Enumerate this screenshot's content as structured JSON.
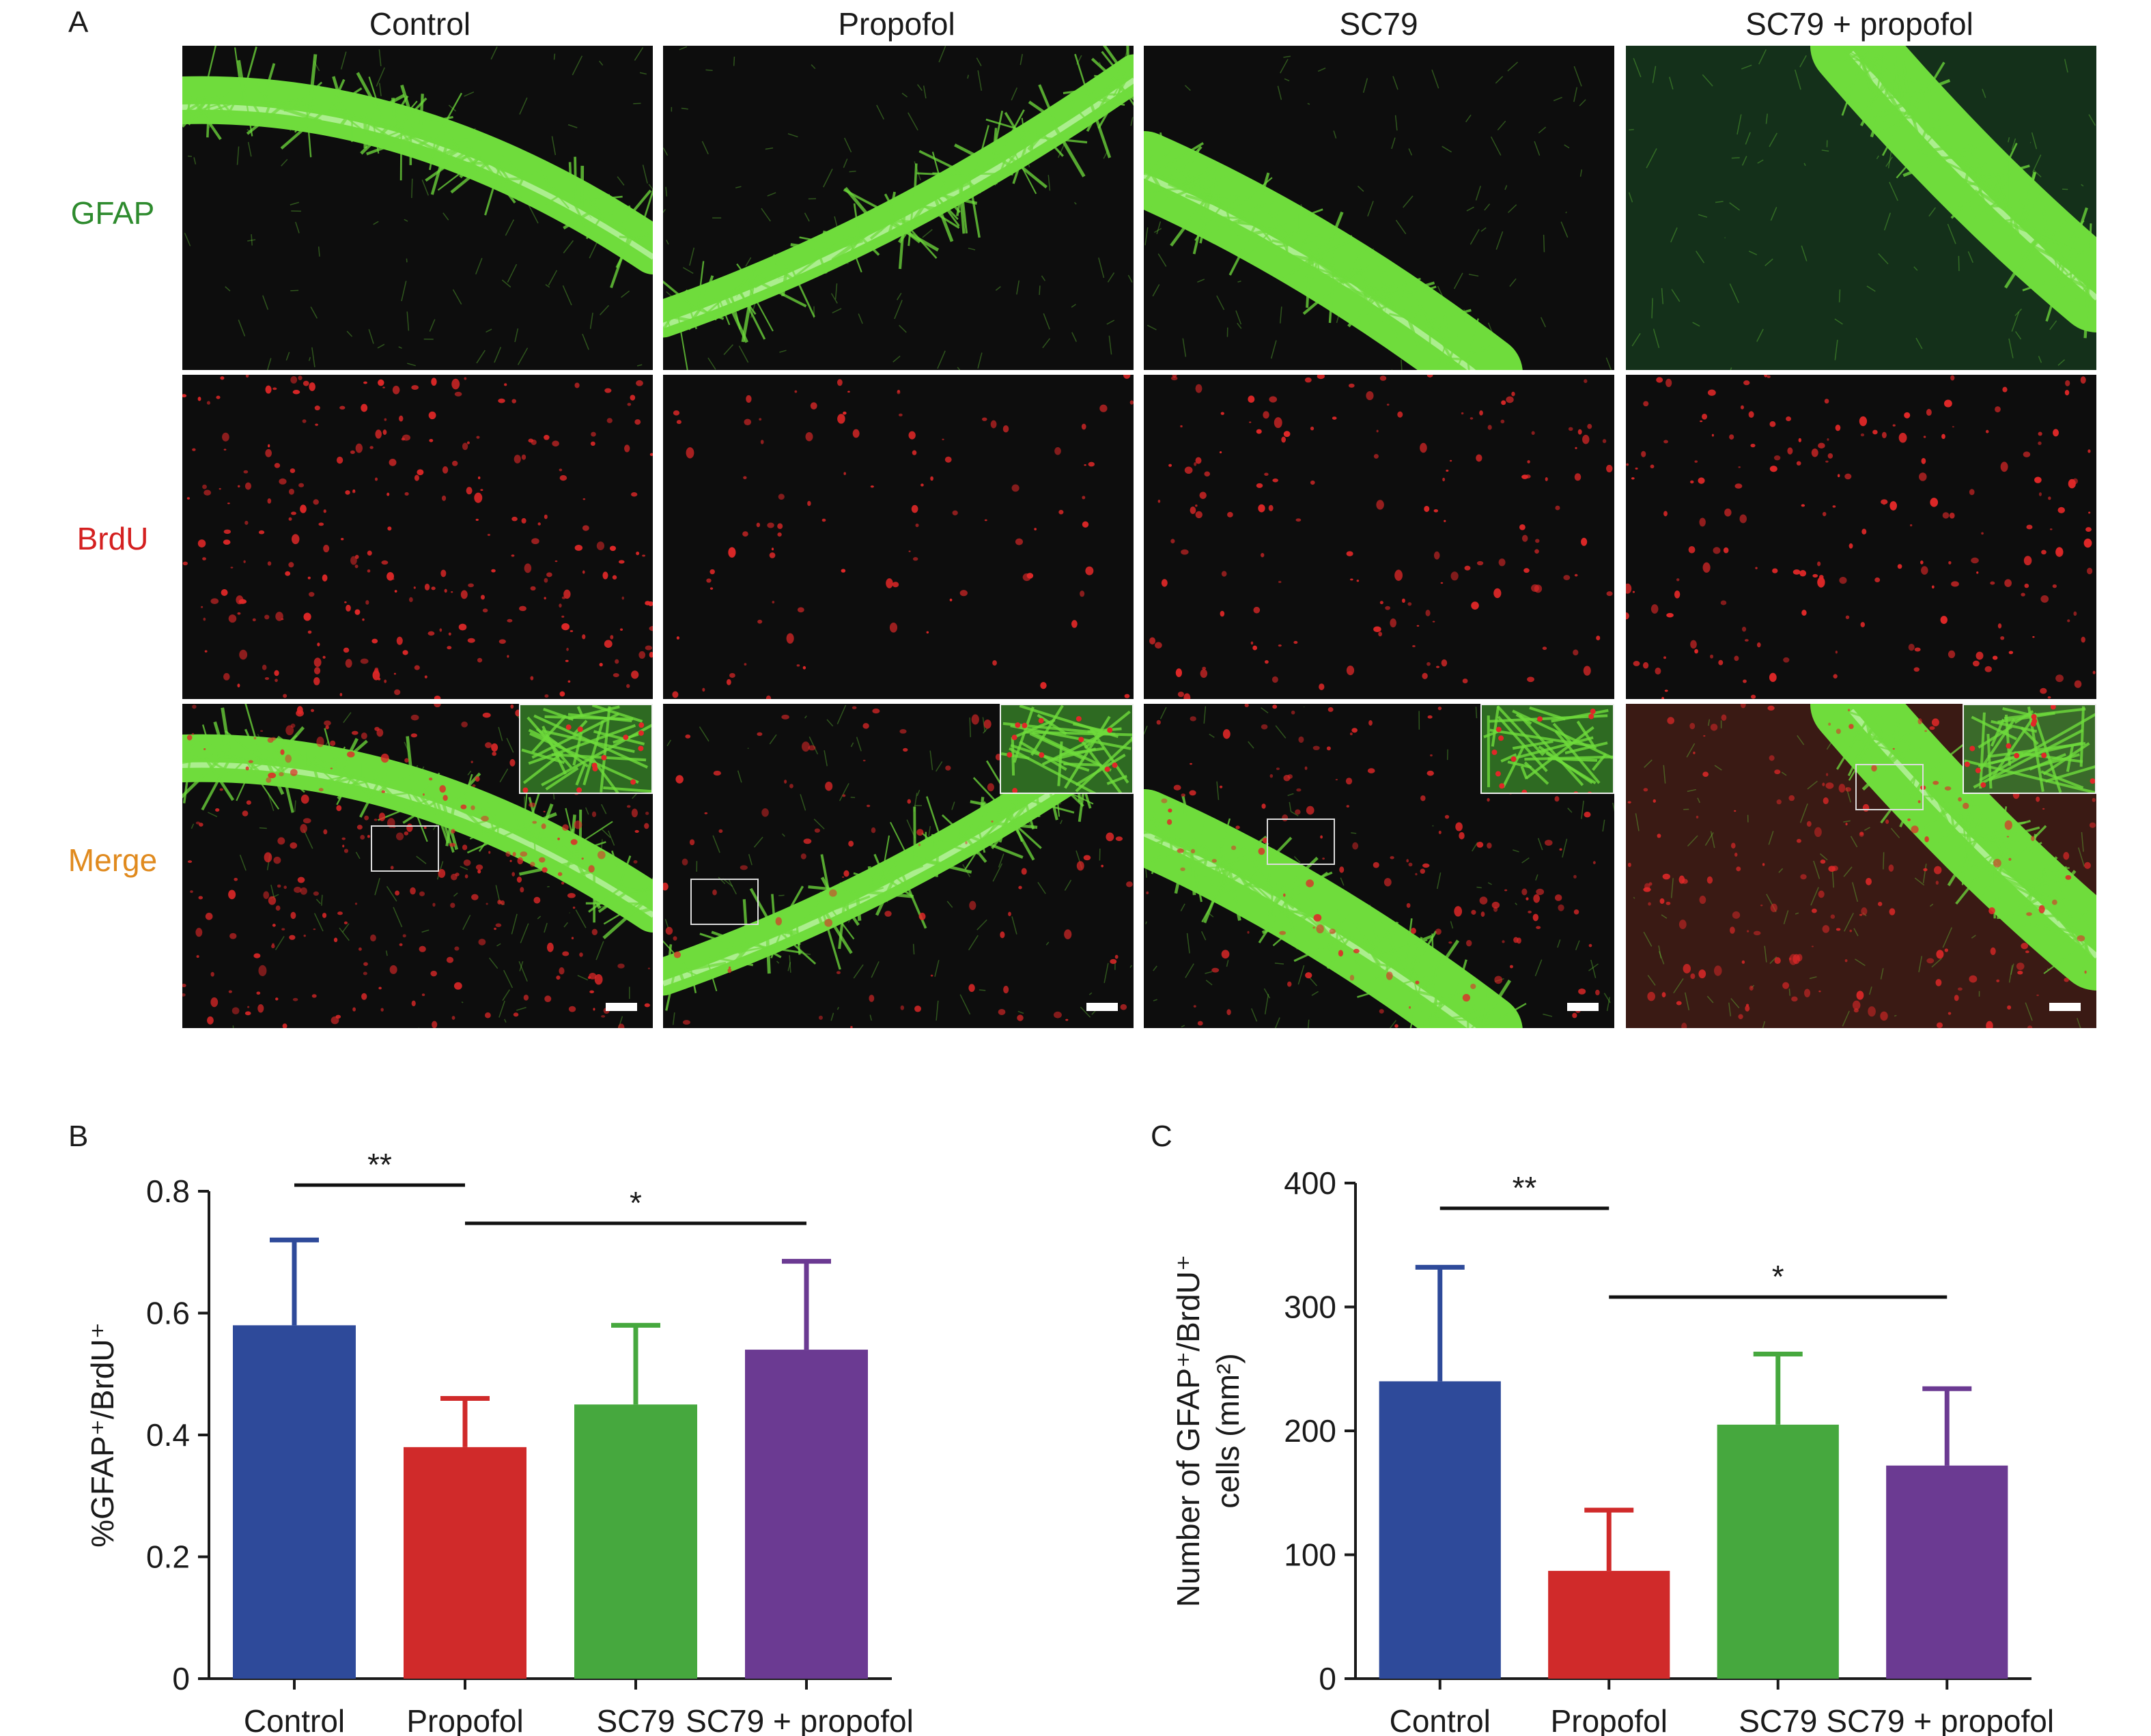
{
  "figure": {
    "panel_a_letter": "A",
    "panel_b_letter": "B",
    "panel_c_letter": "C",
    "columns": [
      "Control",
      "Propofol",
      "SC79",
      "SC79 + propofol"
    ],
    "rows": [
      {
        "label": "GFAP",
        "color": "#2e8b2e"
      },
      {
        "label": "BrdU",
        "color": "#d42020"
      },
      {
        "label": "Merge",
        "color": "#e08a1e"
      }
    ],
    "colors": {
      "gfap_green": "#6fdc3c",
      "brdu_red": "#e02828",
      "background": "#0d0d0d"
    }
  },
  "chart_data": [
    {
      "type": "bar",
      "categories": [
        "Control",
        "Propofol",
        "SC79",
        "SC79 + propofol"
      ],
      "values": [
        0.58,
        0.38,
        0.45,
        0.54
      ],
      "error_plus": [
        0.14,
        0.08,
        0.13,
        0.145
      ],
      "colors": [
        "#2e4a9a",
        "#d02a2a",
        "#46a83e",
        "#6b3a92"
      ],
      "ylabel": "%GFAP⁺/BrdU⁺",
      "ylim": [
        0,
        0.8
      ],
      "yticks": [
        0,
        0.2,
        0.4,
        0.6,
        0.8
      ],
      "ytick_labels": [
        "0",
        "0.2",
        "0.4",
        "0.6",
        "0.8"
      ],
      "significance": [
        {
          "from": "Control",
          "to": "Propofol",
          "label": "**"
        },
        {
          "from": "Propofol",
          "to": "SC79 + propofol",
          "label": "*"
        }
      ]
    },
    {
      "type": "bar",
      "categories": [
        "Control",
        "Propofol",
        "SC79",
        "SC79 + propofol"
      ],
      "values": [
        240,
        87,
        205,
        172
      ],
      "error_plus": [
        92,
        49,
        57,
        62
      ],
      "colors": [
        "#2e4a9a",
        "#d02a2a",
        "#46a83e",
        "#6b3a92"
      ],
      "ylabel_lines": [
        "Number of GFAP⁺/BrdU⁺",
        "cells (mm²)"
      ],
      "ylim": [
        0,
        400
      ],
      "yticks": [
        0,
        100,
        200,
        300,
        400
      ],
      "ytick_labels": [
        "0",
        "100",
        "200",
        "300",
        "400"
      ],
      "significance": [
        {
          "from": "Control",
          "to": "Propofol",
          "label": "**"
        },
        {
          "from": "Propofol",
          "to": "SC79 + propofol",
          "label": "*"
        }
      ]
    }
  ]
}
